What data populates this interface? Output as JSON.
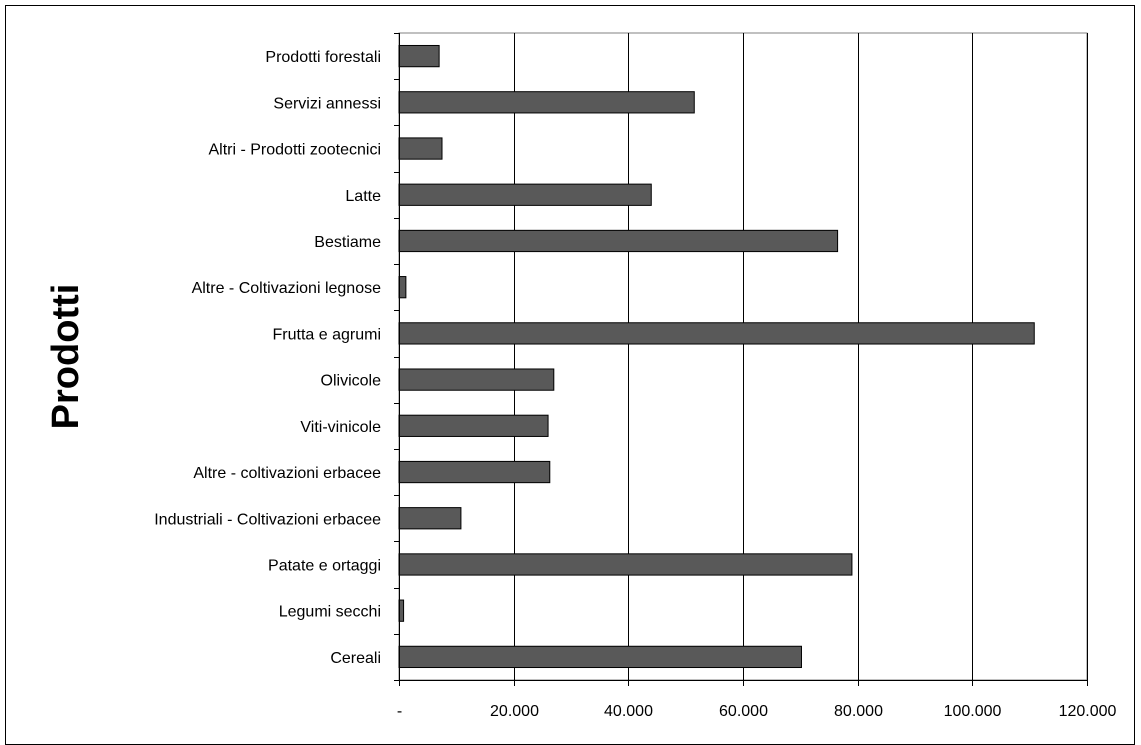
{
  "chart_data": {
    "type": "bar",
    "orientation": "horizontal",
    "categories": [
      "Prodotti forestali",
      "Servizi annessi",
      "Altri - Prodotti zootecnici",
      "Latte",
      "Bestiame",
      "Altre - Coltivazioni legnose",
      "Frutta e agrumi",
      "Olivicole",
      "Viti-vinicole",
      "Altre - coltivazioni erbacee",
      "Industriali - Coltivazioni erbacee",
      "Patate e ortaggi",
      "Legumi secchi",
      "Cereali"
    ],
    "values": [
      7000,
      51500,
      7500,
      44000,
      76500,
      1200,
      110800,
      27000,
      26000,
      26300,
      10800,
      79000,
      800,
      70200
    ],
    "ylabel": "Prodotti",
    "xlabel": "",
    "xlim": [
      0,
      120000
    ],
    "xticks": [
      0,
      20000,
      40000,
      60000,
      80000,
      100000,
      120000
    ],
    "xtick_labels": [
      "-",
      "20.000",
      "40.000",
      "60.000",
      "80.000",
      "100.000",
      "120.000"
    ],
    "grid": "vertical",
    "legend": "none",
    "colors": {
      "bar_fill": "#595959",
      "bar_stroke": "#000000",
      "grid": "#000000",
      "plot_border": "#808080"
    }
  }
}
